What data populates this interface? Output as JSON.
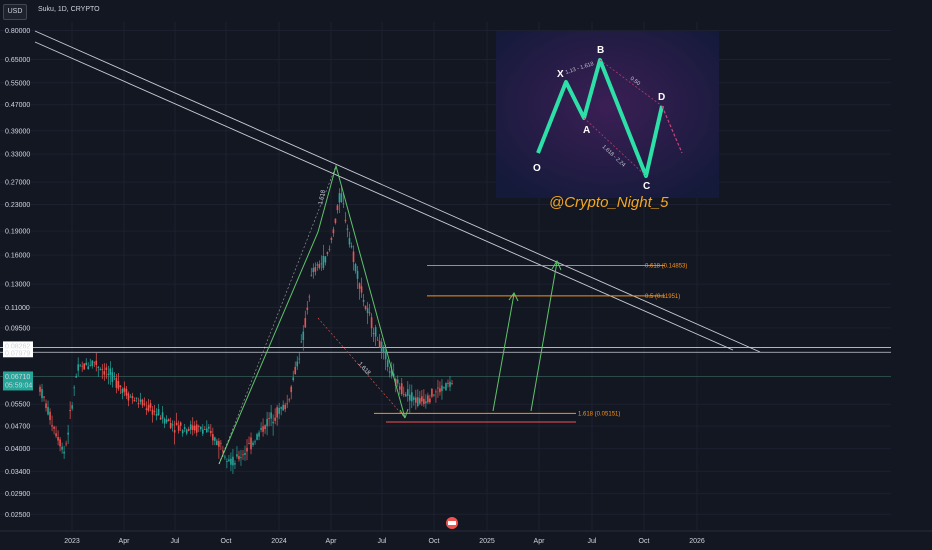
{
  "header": {
    "currency": "USD",
    "title": "Suku, 1D, CRYPTO"
  },
  "watermark": "@Crypto_Night_5",
  "price_tags": {
    "top": "0.08262",
    "second": "0.07979",
    "current": "0.06710",
    "countdown": "05:59:04"
  },
  "colors": {
    "up": "#26a69a",
    "down": "#ef5350",
    "pattern": "#5ec36a",
    "fib": "#f7931a",
    "trend": "#c9ccd4",
    "inset_zigzag": "#2de0a7"
  },
  "chart_data": {
    "type": "candlestick",
    "y_scale": "log",
    "ylim": [
      0.024,
      0.85
    ],
    "y_ticks": [
      "0.80000",
      "0.65000",
      "0.55000",
      "0.47000",
      "0.39000",
      "0.33000",
      "0.27000",
      "0.23000",
      "0.19000",
      "0.16000",
      "0.13000",
      "0.11000",
      "0.09500",
      "0.05500",
      "0.04700",
      "0.04000",
      "0.03400",
      "0.02900",
      "0.02500"
    ],
    "x_ticks": [
      "2023",
      "Apr",
      "Jul",
      "Oct",
      "2024",
      "Apr",
      "Jul",
      "Oct",
      "2025",
      "Apr",
      "Jul",
      "Oct",
      "2026"
    ],
    "anchors": [
      {
        "t": 0,
        "p": 0.062
      },
      {
        "t": 0.03,
        "p": 0.048
      },
      {
        "t": 0.06,
        "p": 0.039
      },
      {
        "t": 0.09,
        "p": 0.07
      },
      {
        "t": 0.13,
        "p": 0.075
      },
      {
        "t": 0.18,
        "p": 0.066
      },
      {
        "t": 0.22,
        "p": 0.058
      },
      {
        "t": 0.28,
        "p": 0.052
      },
      {
        "t": 0.33,
        "p": 0.047
      },
      {
        "t": 0.4,
        "p": 0.046
      },
      {
        "t": 0.44,
        "p": 0.041
      },
      {
        "t": 0.47,
        "p": 0.036
      },
      {
        "t": 0.51,
        "p": 0.041
      },
      {
        "t": 0.56,
        "p": 0.05
      },
      {
        "t": 0.6,
        "p": 0.055
      },
      {
        "t": 0.64,
        "p": 0.09
      },
      {
        "t": 0.66,
        "p": 0.14
      },
      {
        "t": 0.7,
        "p": 0.16
      },
      {
        "t": 0.73,
        "p": 0.25
      },
      {
        "t": 0.76,
        "p": 0.16
      },
      {
        "t": 0.79,
        "p": 0.11
      },
      {
        "t": 0.83,
        "p": 0.082
      },
      {
        "t": 0.86,
        "p": 0.065
      },
      {
        "t": 0.89,
        "p": 0.06
      },
      {
        "t": 0.92,
        "p": 0.056
      },
      {
        "t": 0.96,
        "p": 0.06
      },
      {
        "t": 1,
        "p": 0.064
      }
    ],
    "fib_levels": [
      {
        "label": "0.618 (0.14853)",
        "value": 0.14853
      },
      {
        "label": "0.5 (0.11951)",
        "value": 0.11951
      },
      {
        "label": "1.618 (0.05151)",
        "value": 0.05151
      }
    ],
    "horizontal_levels": [
      0.08262,
      0.07979,
      0.0671
    ],
    "pattern_labels": [
      "1.618",
      "1.618"
    ],
    "inset": {
      "labels": [
        "X",
        "B",
        "A",
        "D",
        "O",
        "C"
      ],
      "ratios": [
        "1.13 - 1.618",
        "0.50",
        "1.618 - 2.24"
      ]
    }
  }
}
